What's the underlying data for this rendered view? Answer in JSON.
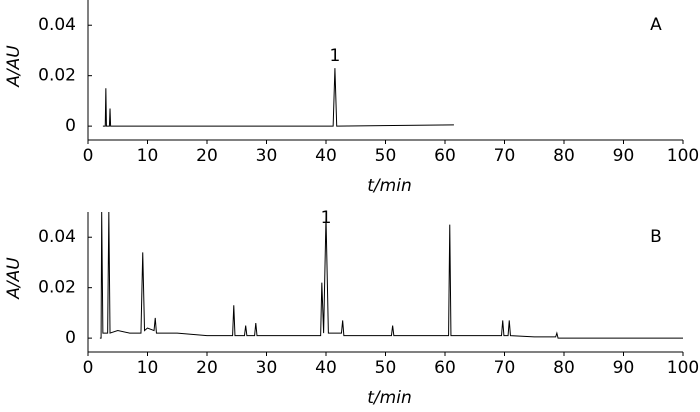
{
  "chart_data": [
    {
      "type": "line",
      "panel_label": "A",
      "xlabel": "t/min",
      "ylabel": "A/AU",
      "x": [
        2.5,
        2.9,
        3.0,
        3.1,
        3.6,
        3.7,
        3.8,
        41.2,
        41.5,
        41.8,
        61.5
      ],
      "series": [
        {
          "color": "#000000",
          "values": [
            0,
            0,
            0.015,
            0,
            0,
            0.007,
            0,
            0,
            0.023,
            0,
            0.0005
          ]
        }
      ],
      "annotations": [
        {
          "text": "1",
          "x": 41.5
        }
      ],
      "xlim": [
        0,
        100
      ],
      "xticks": [
        0,
        10,
        20,
        30,
        40,
        50,
        60,
        70,
        80,
        90,
        100
      ],
      "ylim": [
        -0.0055,
        0.05
      ],
      "yticks": [
        0,
        0.02,
        0.04
      ]
    },
    {
      "type": "line",
      "panel_label": "B",
      "xlabel": "t/min",
      "ylabel": "A/AU",
      "x": [
        2.0,
        2.2,
        2.3,
        2.5,
        3.3,
        3.5,
        3.7,
        5,
        7,
        8.9,
        9.2,
        9.5,
        10,
        11.1,
        11.3,
        11.5,
        15,
        20,
        24.3,
        24.5,
        24.7,
        26.3,
        26.5,
        26.7,
        28.0,
        28.2,
        28.4,
        33,
        39.1,
        39.3,
        39.6,
        40.0,
        40.4,
        42.6,
        42.8,
        43.0,
        47,
        51.0,
        51.2,
        51.4,
        56,
        60.6,
        60.8,
        61.0,
        65,
        69.5,
        69.7,
        69.9,
        70.6,
        70.8,
        71.0,
        75,
        78.6,
        78.8,
        79.0,
        85,
        100
      ],
      "series": [
        {
          "color": "#000000",
          "values": [
            0,
            0,
            0.05,
            0.002,
            0.002,
            0.05,
            0.002,
            0.003,
            0.002,
            0.002,
            0.034,
            0.003,
            0.004,
            0.003,
            0.008,
            0.002,
            0.002,
            0.001,
            0.001,
            0.013,
            0.001,
            0.001,
            0.005,
            0.001,
            0.001,
            0.006,
            0.001,
            0.001,
            0.001,
            0.022,
            0.002,
            0.048,
            0.002,
            0.002,
            0.007,
            0.001,
            0.001,
            0.001,
            0.005,
            0.001,
            0.001,
            0.001,
            0.045,
            0.001,
            0.001,
            0.001,
            0.007,
            0.001,
            0.001,
            0.007,
            0.001,
            0.0005,
            0.0005,
            0.002,
            0,
            0,
            0
          ]
        }
      ],
      "annotations": [
        {
          "text": "1",
          "x": 40.0
        }
      ],
      "xlim": [
        0,
        100
      ],
      "xticks": [
        0,
        10,
        20,
        30,
        40,
        50,
        60,
        70,
        80,
        90,
        100
      ],
      "ylim": [
        -0.0055,
        0.05
      ],
      "yticks": [
        0,
        0.02,
        0.04
      ]
    }
  ]
}
